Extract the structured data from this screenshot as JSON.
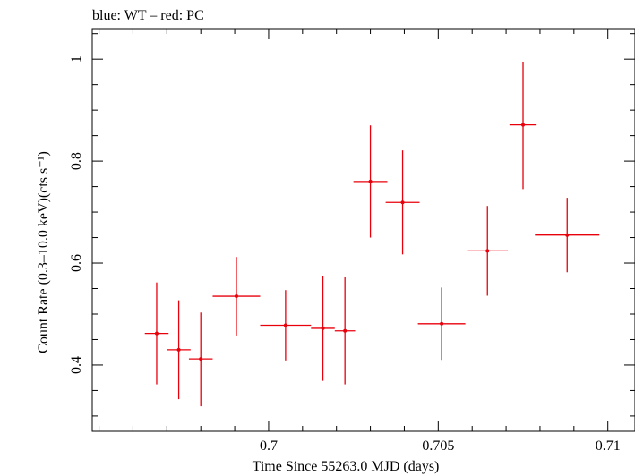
{
  "chart_data": {
    "type": "scatter",
    "title": "blue: WT – red: PC",
    "xlabel": "Time Since 55263.0 MJD (days)",
    "ylabel": "Count Rate (0.3–10.0 keV)(cts s⁻¹)",
    "xlim": [
      0.6948,
      0.7108
    ],
    "ylim": [
      0.27,
      1.06
    ],
    "x_ticks": [
      0.7,
      0.705,
      0.71
    ],
    "x_tick_labels": [
      "0.7",
      "0.705",
      "0.71"
    ],
    "y_ticks": [
      0.4,
      0.6,
      0.8,
      1.0
    ],
    "y_tick_labels": [
      "0.4",
      "0.6",
      "0.8",
      "1"
    ],
    "series": [
      {
        "name": "PC",
        "color": "#e8000b",
        "points": [
          {
            "x": 0.6967,
            "xerr": 0.00035,
            "y": 0.462,
            "yerr_low": 0.1,
            "yerr_high": 0.1
          },
          {
            "x": 0.69735,
            "xerr": 0.00035,
            "y": 0.43,
            "yerr_low": 0.097,
            "yerr_high": 0.097
          },
          {
            "x": 0.698,
            "xerr": 0.00035,
            "y": 0.412,
            "yerr_low": 0.093,
            "yerr_high": 0.091
          },
          {
            "x": 0.69905,
            "xerr": 0.0007,
            "y": 0.535,
            "yerr_low": 0.077,
            "yerr_high": 0.077
          },
          {
            "x": 0.7005,
            "xerr": 0.00075,
            "y": 0.478,
            "yerr_low": 0.069,
            "yerr_high": 0.069
          },
          {
            "x": 0.7016,
            "xerr": 0.00035,
            "y": 0.472,
            "yerr_low": 0.103,
            "yerr_high": 0.102
          },
          {
            "x": 0.70225,
            "xerr": 0.0003,
            "y": 0.467,
            "yerr_low": 0.105,
            "yerr_high": 0.105
          },
          {
            "x": 0.703,
            "xerr": 0.0005,
            "y": 0.76,
            "yerr_low": 0.11,
            "yerr_high": 0.11
          },
          {
            "x": 0.70395,
            "xerr": 0.0005,
            "y": 0.719,
            "yerr_low": 0.102,
            "yerr_high": 0.102
          },
          {
            "x": 0.7051,
            "xerr": 0.0007,
            "y": 0.481,
            "yerr_low": 0.071,
            "yerr_high": 0.071
          },
          {
            "x": 0.70645,
            "xerr": 0.0006,
            "y": 0.624,
            "yerr_low": 0.088,
            "yerr_high": 0.088
          },
          {
            "x": 0.7075,
            "xerr": 0.0004,
            "y": 0.871,
            "yerr_low": 0.126,
            "yerr_high": 0.124
          },
          {
            "x": 0.7088,
            "xerr": 0.00095,
            "y": 0.655,
            "yerr_low": 0.073,
            "yerr_high": 0.073
          }
        ]
      }
    ]
  }
}
